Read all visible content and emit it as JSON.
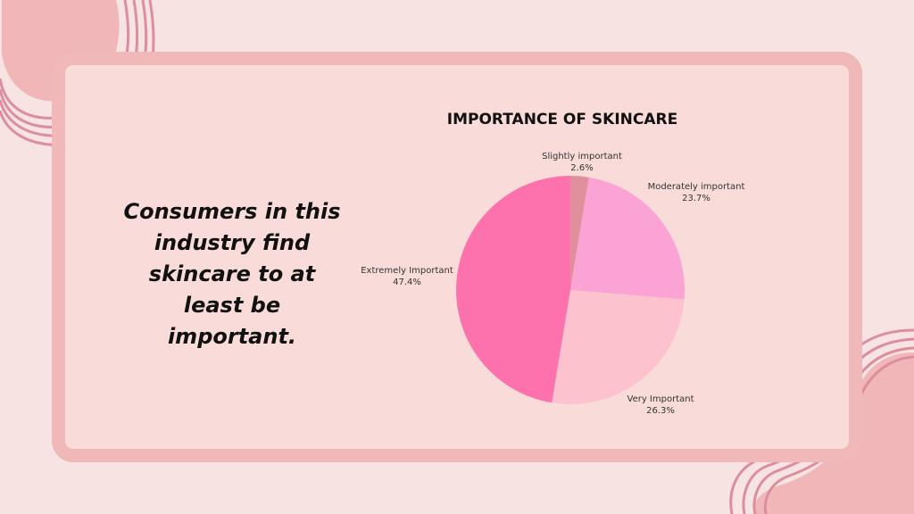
{
  "headline": "Consumers in this industry find skincare to at least be important.",
  "colors": {
    "background": "#f6e3e2",
    "frame_border": "#f0b8b8",
    "frame_fill": "#f9dcd9",
    "deco_line": "#dc8e9e",
    "deco_fill": "#f1b6b8"
  },
  "chart_data": {
    "type": "pie",
    "title": "IMPORTANCE OF SKINCARE",
    "slices": [
      {
        "label": "Slightly important",
        "value": 2.6,
        "value_label": "2.6%",
        "color": "#df909c"
      },
      {
        "label": "Moderately important",
        "value": 23.7,
        "value_label": "23.7%",
        "color": "#fca3d5"
      },
      {
        "label": "Very Important",
        "value": 26.3,
        "value_label": "26.3%",
        "color": "#fcc2cd"
      },
      {
        "label": "Extremely Important",
        "value": 47.4,
        "value_label": "47.4%",
        "color": "#fd72ac"
      }
    ],
    "start": "top",
    "direction": "clockwise"
  }
}
